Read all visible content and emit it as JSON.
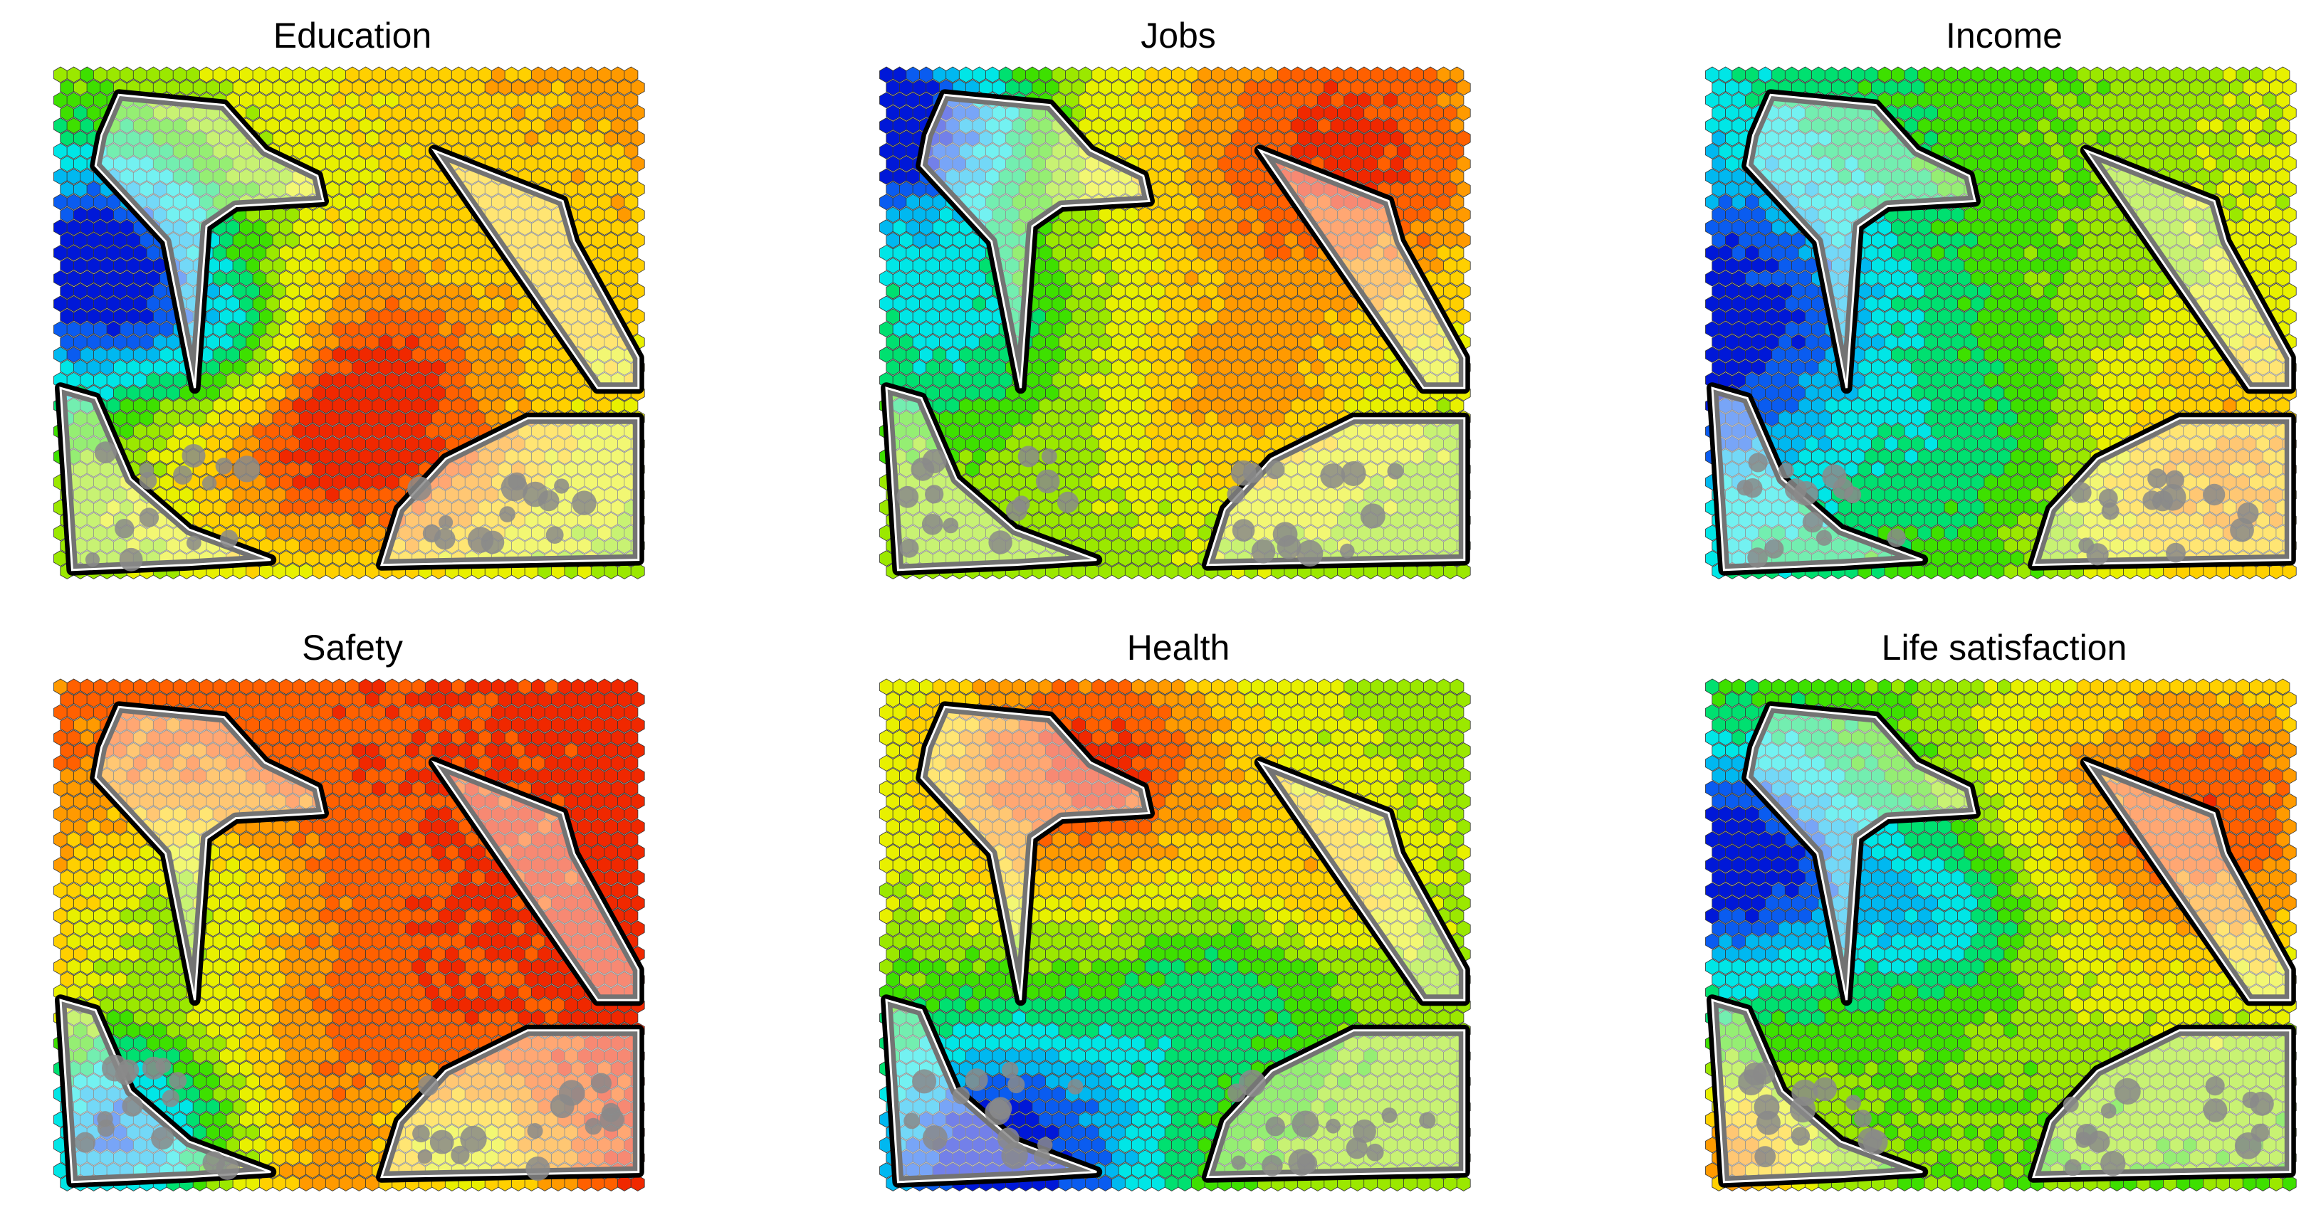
{
  "figure": {
    "panels": [
      {
        "id": "education",
        "title": "Education",
        "pattern": "education"
      },
      {
        "id": "jobs",
        "title": "Jobs",
        "pattern": "jobs"
      },
      {
        "id": "income",
        "title": "Income",
        "pattern": "income"
      },
      {
        "id": "safety",
        "title": "Safety",
        "pattern": "safety"
      },
      {
        "id": "health",
        "title": "Health",
        "pattern": "health"
      },
      {
        "id": "life-satisfaction",
        "title": "Life satisfaction",
        "pattern": "life"
      }
    ],
    "colormap": [
      "#0018d8",
      "#0a5cf0",
      "#00b8f0",
      "#00e6e6",
      "#00e070",
      "#3ee000",
      "#9be800",
      "#e8f000",
      "#ffd000",
      "#ff9a00",
      "#ff6000",
      "#f02800"
    ],
    "overlay_colors": {
      "region_fill": "#ffffff",
      "region_stroke": "#000000",
      "gray_dot": "#8a8a8a"
    }
  }
}
